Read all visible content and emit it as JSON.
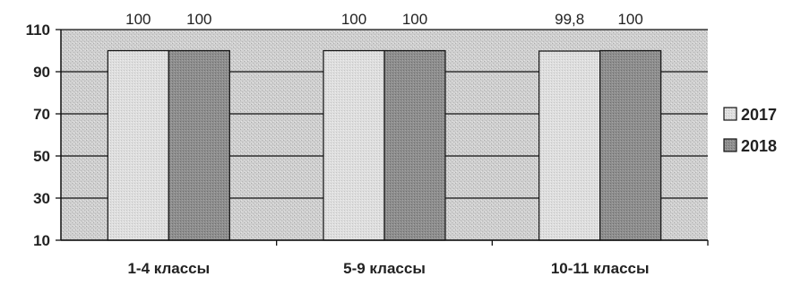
{
  "chart_data": {
    "type": "bar",
    "title": "",
    "xlabel": "",
    "ylabel": "",
    "categories": [
      "1-4 классы",
      "5-9 классы",
      "10-11 классы"
    ],
    "series": [
      {
        "name": "2017",
        "values": [
          100,
          100,
          99.8
        ],
        "labels": [
          "100",
          "100",
          "99,8"
        ],
        "color": "#d8d8d8"
      },
      {
        "name": "2018",
        "values": [
          100,
          100,
          100
        ],
        "labels": [
          "100",
          "100",
          "100"
        ],
        "color": "#8c8c8c"
      }
    ],
    "ylim": [
      10,
      110
    ],
    "yticks": [
      "10",
      "30",
      "50",
      "70",
      "90",
      "110"
    ],
    "grid": true,
    "legend_position": "right",
    "plot_background": "#c8c8c8"
  }
}
